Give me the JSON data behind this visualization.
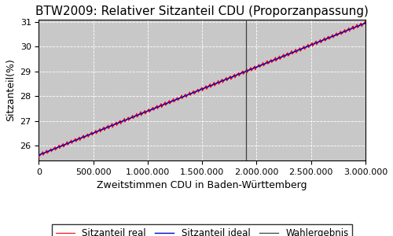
{
  "title": "BTW2009: Relativer Sitzanteil CDU (Proporzanpassung)",
  "xlabel": "Zweitstimmen CDU in Baden-Württemberg",
  "ylabel": "Sitzanteil(%)",
  "x_min": 0,
  "x_max": 3000000,
  "y_min": 25.4,
  "y_max": 31.1,
  "y_ticks": [
    26,
    27,
    28,
    29,
    30,
    31
  ],
  "x_ticks": [
    0,
    500000,
    1000000,
    1500000,
    2000000,
    2500000,
    3000000
  ],
  "wahlergebnis_x": 1900000,
  "ideal_start": 25.62,
  "ideal_end": 30.95,
  "noise_scale": 0.1,
  "n_points": 3000,
  "line_real_color": "#ff0000",
  "line_ideal_color": "#0000cc",
  "line_vline_color": "#404040",
  "background_color": "#c8c8c8",
  "legend_labels": [
    "Sitzanteil real",
    "Sitzanteil ideal",
    "Wahlergebnis"
  ],
  "title_fontsize": 11,
  "axis_label_fontsize": 9,
  "tick_fontsize": 8,
  "legend_fontsize": 8.5
}
